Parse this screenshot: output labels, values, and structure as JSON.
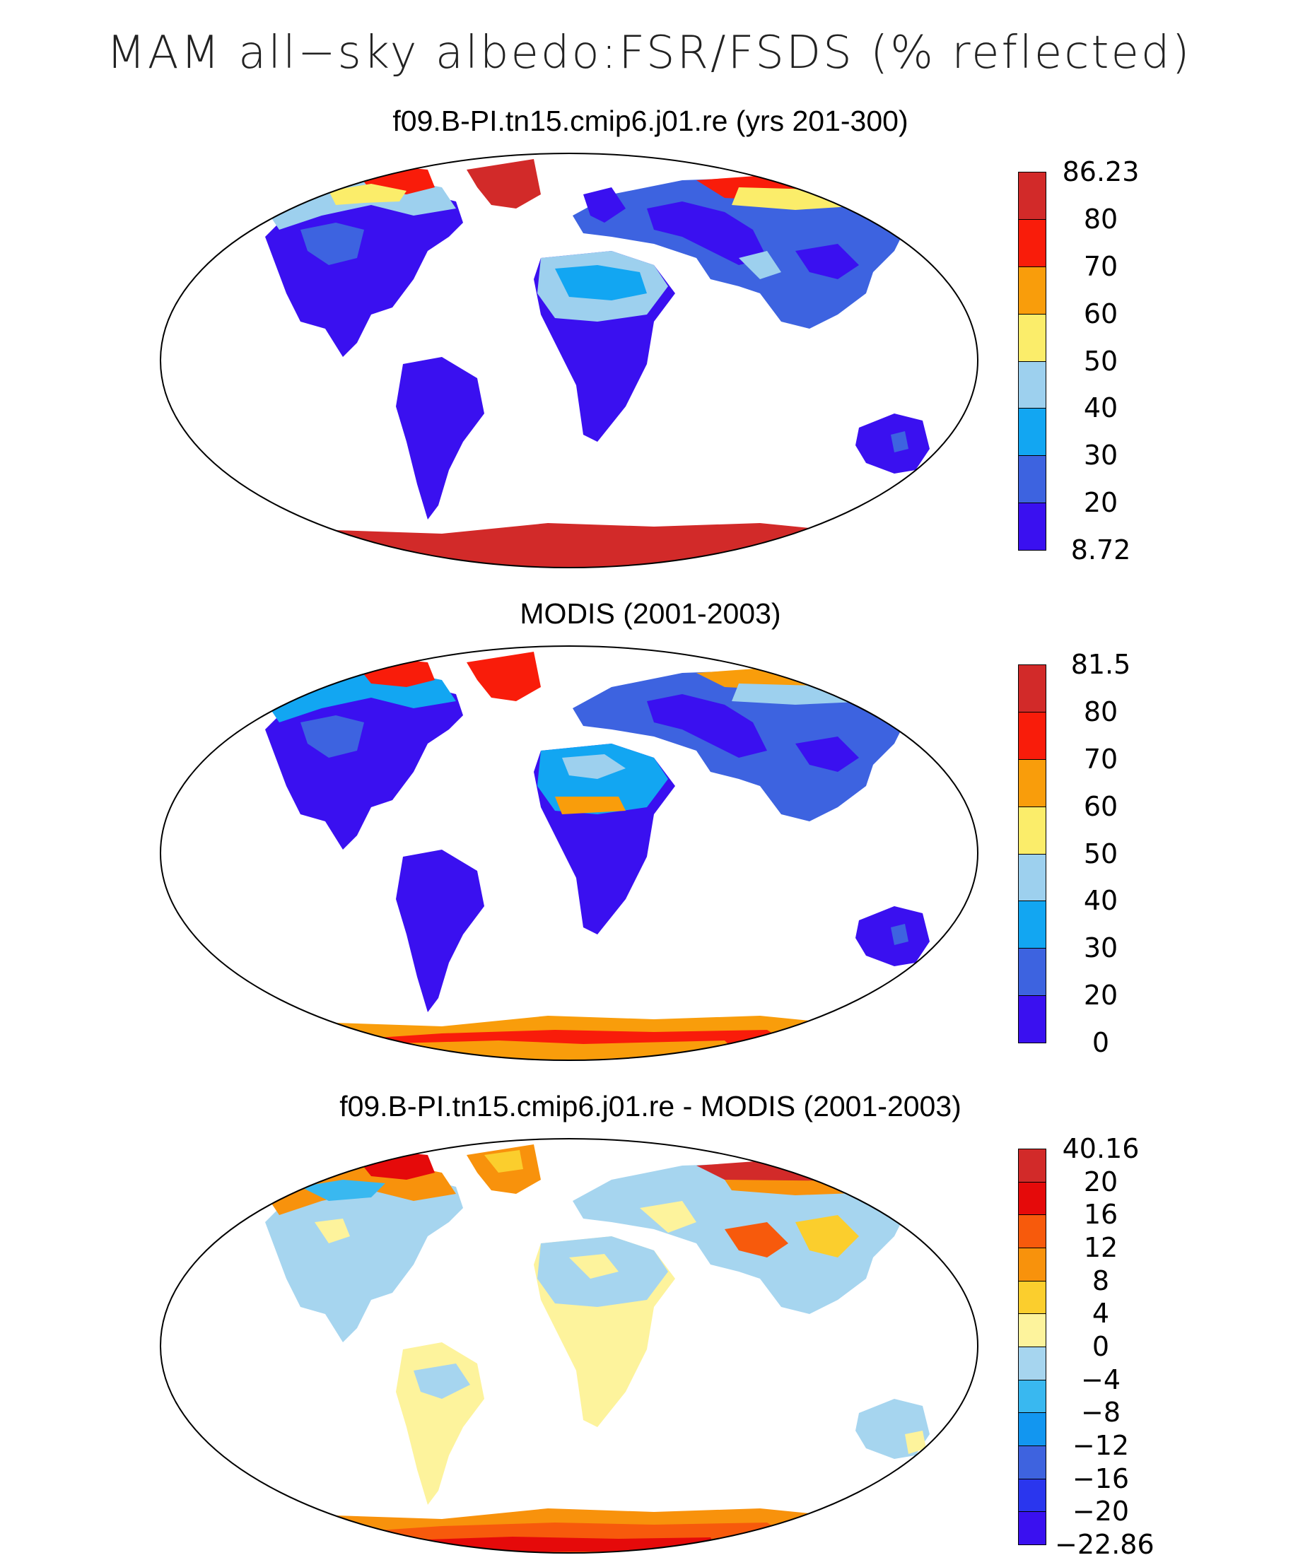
{
  "figure": {
    "title": "MAM all−sky albedo:FSR/FSDS (% reflected)"
  },
  "panels": [
    {
      "id": "model",
      "title": "f09.B-PI.tn15.cmip6.j01.re (yrs 201-300)",
      "colorbar": {
        "colors": [
          "#3a10f0",
          "#3d63e0",
          "#12a6f2",
          "#9dd0ee",
          "#fbed6a",
          "#f99d0b",
          "#f91c0a",
          "#d22a29"
        ],
        "labels": [
          "8.72",
          "20",
          "30",
          "40",
          "50",
          "60",
          "70",
          "80",
          "86.23"
        ]
      }
    },
    {
      "id": "obs",
      "title": "MODIS (2001-2003)",
      "colorbar": {
        "colors": [
          "#3a10f0",
          "#3d63e0",
          "#12a6f2",
          "#9dd0ee",
          "#fbed6a",
          "#f99d0b",
          "#f91c0a",
          "#d22a29"
        ],
        "labels": [
          "0",
          "20",
          "30",
          "40",
          "50",
          "60",
          "70",
          "80",
          "81.5"
        ]
      }
    },
    {
      "id": "diff",
      "title": "f09.B-PI.tn15.cmip6.j01.re - MODIS (2001-2003)",
      "colorbar": {
        "colors": [
          "#3a10f0",
          "#2a36ee",
          "#3e63df",
          "#1296f0",
          "#39b8f0",
          "#a6d5ef",
          "#fdf39c",
          "#fbce2d",
          "#f8920c",
          "#f75a0c",
          "#e50a0a",
          "#d22a29"
        ],
        "labels": [
          "−22.86",
          "−20",
          "−16",
          "−12",
          "−8",
          "−4",
          "0",
          "4",
          "8",
          "12",
          "16",
          "20",
          "40.16"
        ]
      }
    }
  ]
}
